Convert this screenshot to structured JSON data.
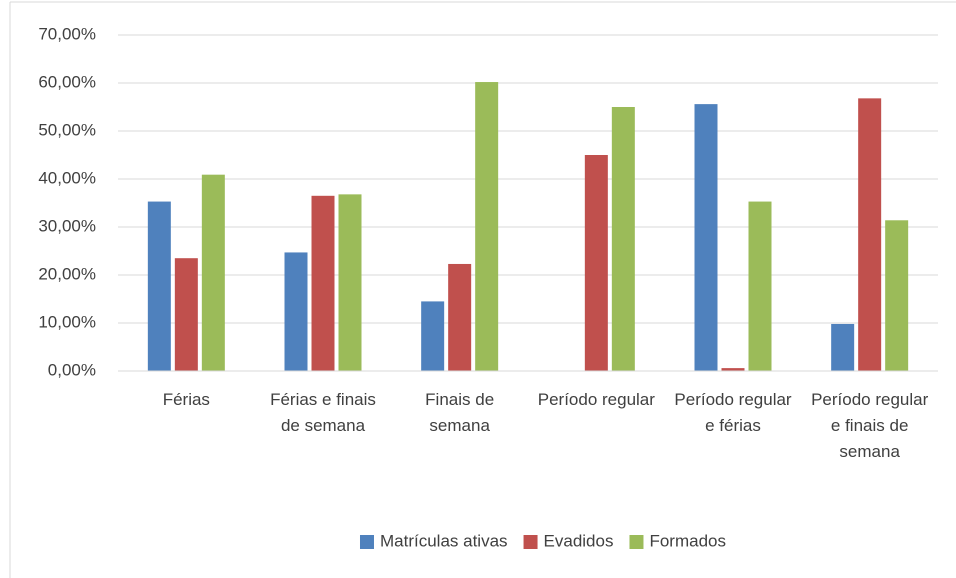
{
  "chart_data": {
    "type": "bar",
    "categories": [
      "Férias",
      "Férias e finais de semana",
      "Finais de semana",
      "Período regular",
      "Período regular e férias",
      "Período regular e finais de semana"
    ],
    "series": [
      {
        "name": "Matrículas ativas",
        "color": "#4f81bd",
        "values": [
          35.3,
          24.7,
          14.5,
          0,
          55.6,
          9.8
        ]
      },
      {
        "name": "Evadidos",
        "color": "#c0504d",
        "values": [
          23.5,
          36.5,
          22.3,
          45,
          0.6,
          56.8
        ]
      },
      {
        "name": "Formados",
        "color": "#9bbb59",
        "values": [
          40.9,
          36.8,
          60.2,
          55,
          35.3,
          31.4
        ]
      }
    ],
    "ylim": [
      0,
      70
    ],
    "yticks": [
      {
        "value": 0,
        "label": "0,00%"
      },
      {
        "value": 10,
        "label": "10,00%"
      },
      {
        "value": 20,
        "label": "20,00%"
      },
      {
        "value": 30,
        "label": "30,00%"
      },
      {
        "value": 40,
        "label": "40,00%"
      },
      {
        "value": 50,
        "label": "50,00%"
      },
      {
        "value": 60,
        "label": "60,00%"
      },
      {
        "value": 70,
        "label": "70,00%"
      }
    ],
    "grid": true,
    "legend": "bottom"
  }
}
